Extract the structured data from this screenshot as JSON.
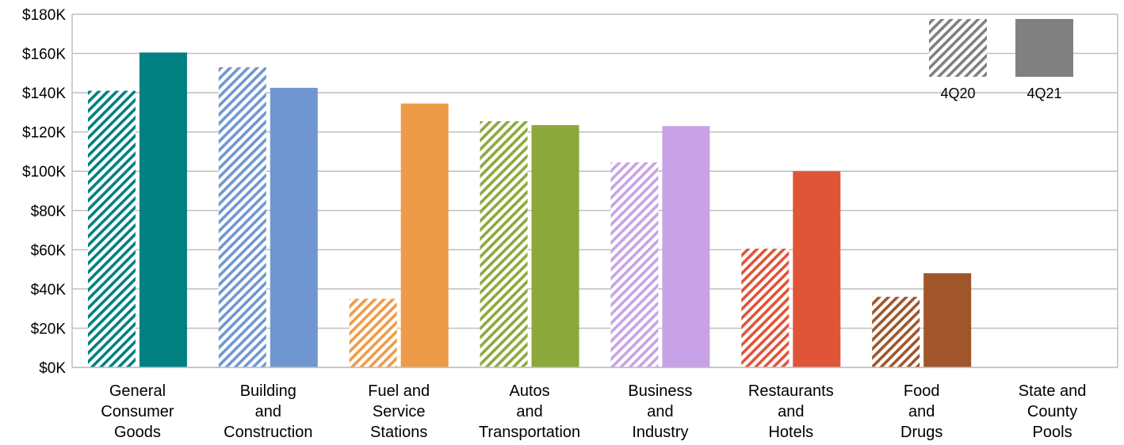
{
  "chart_data": {
    "type": "bar",
    "title": "",
    "xlabel": "",
    "ylabel": "",
    "ylim": [
      0,
      180000
    ],
    "y_ticks": [
      0,
      20000,
      40000,
      60000,
      80000,
      100000,
      120000,
      140000,
      160000,
      180000
    ],
    "y_tick_labels": [
      "$0K",
      "$20K",
      "$40K",
      "$60K",
      "$80K",
      "$100K",
      "$120K",
      "$140K",
      "$160K",
      "$180K"
    ],
    "grid": true,
    "legend_position": "top-right",
    "categories": [
      [
        "General",
        "Consumer",
        "Goods"
      ],
      [
        "Building",
        "and",
        "Construction"
      ],
      [
        "Fuel and",
        "Service",
        "Stations"
      ],
      [
        "Autos",
        "and",
        "Transportation"
      ],
      [
        "Business",
        "and",
        "Industry"
      ],
      [
        "Restaurants",
        "and",
        "Hotels"
      ],
      [
        "Food",
        "and",
        "Drugs"
      ],
      [
        "State and",
        "County",
        "Pools"
      ]
    ],
    "category_colors": [
      "#008080",
      "#7096D1",
      "#EE9B47",
      "#8BA93A",
      "#C8A2E6",
      "#E05438",
      "#A0552A",
      "#808080"
    ],
    "series": [
      {
        "name": "4Q20",
        "style": "hatched",
        "values": [
          141000,
          153000,
          35000,
          125500,
          104500,
          60500,
          36000,
          0
        ]
      },
      {
        "name": "4Q21",
        "style": "solid",
        "values": [
          160500,
          142500,
          134500,
          123500,
          123000,
          100000,
          48000,
          0
        ]
      }
    ],
    "legend": [
      {
        "label": "4Q20",
        "style": "hatched",
        "color": "#808080"
      },
      {
        "label": "4Q21",
        "style": "solid",
        "color": "#808080"
      }
    ]
  }
}
